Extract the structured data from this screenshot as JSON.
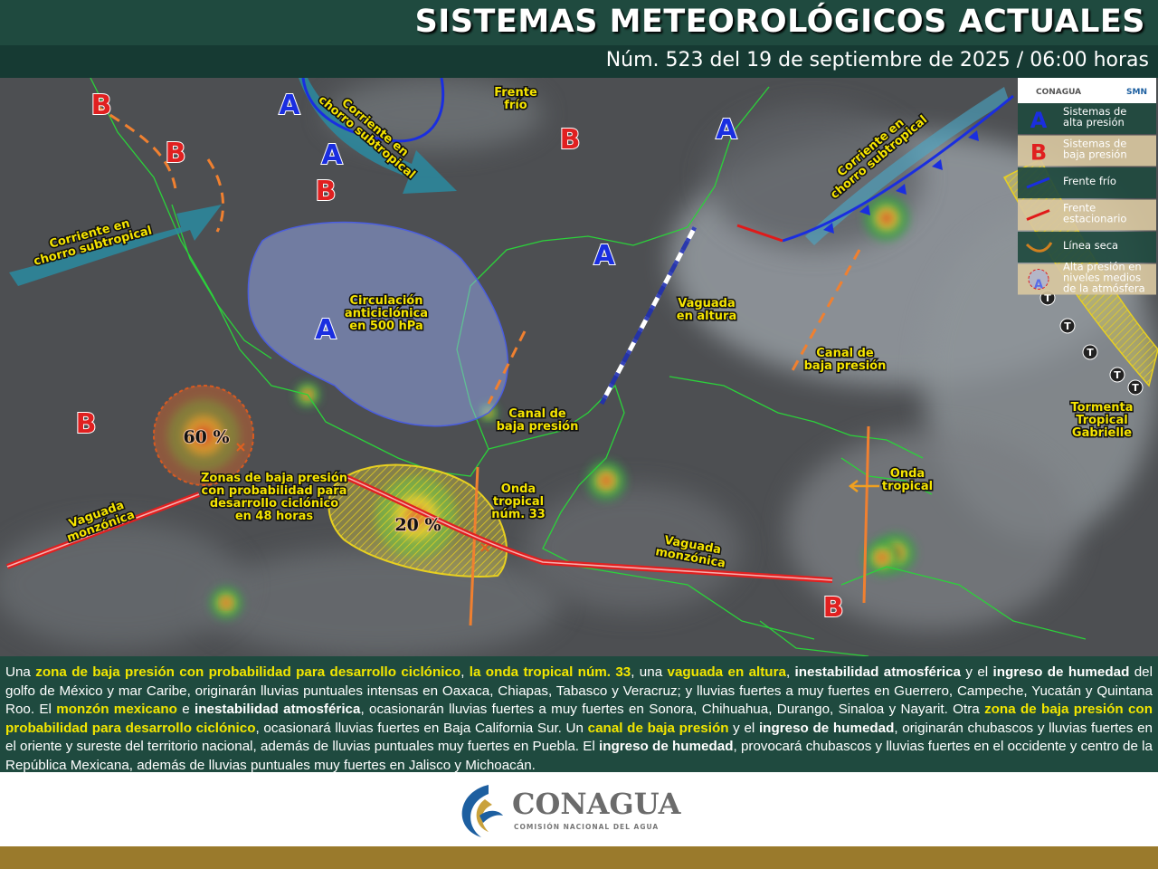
{
  "header": {
    "title": "SISTEMAS METEOROLÓGICOS ACTUALES",
    "subtitle": "Núm. 523 del 19 de septiembre de 2025 / 06:00 horas"
  },
  "map": {
    "labels": [
      "Corriente en\nchorro subtropical",
      "Corriente en\nchorro subtropical",
      "Frente\nfrío",
      "Circulación\nanticiclónica\nen 500 hPa",
      "Corriente en\nchorro subtropical",
      "Vaguada\nen altura",
      "Canal de\nbaja presión",
      "Canal de\nbaja presión",
      "Zonas de baja presión\ncon probabilidad para\ndesarrollo ciclónico\nen 48 horas",
      "Vaguada\nmonzónica",
      "Onda\ntropical\nnúm. 33",
      "Vaguada\nmonzónica",
      "Onda\ntropical",
      "Tormenta\nTropical\nGabrielle"
    ],
    "probabilities": [
      "60 %",
      "20 %"
    ],
    "markers": [
      "A",
      "A",
      "A",
      "A",
      "A",
      "B",
      "B",
      "B",
      "B",
      "B",
      "B"
    ],
    "storm_track": [
      "T",
      "T",
      "T",
      "T",
      "T"
    ]
  },
  "legend": {
    "logos": [
      "CONAGUA",
      "SMN"
    ],
    "items": [
      {
        "symbol": "A",
        "text": "Sistemas de\nalta presión"
      },
      {
        "symbol": "B",
        "text": "Sistemas de\nbaja presión"
      },
      {
        "text": "Frente frío"
      },
      {
        "text": "Frente\nestacionario"
      },
      {
        "text": "Línea seca"
      },
      {
        "symbol": "A",
        "text": "Alta presión en\nniveles medios\nde la atmósfera"
      }
    ]
  },
  "summary": [
    {
      "text": "Una ",
      "style": "plain"
    },
    {
      "text": "zona de baja presión con probabilidad para desarrollo ciclónico",
      "style": "highlight"
    },
    {
      "text": ", ",
      "style": "plain"
    },
    {
      "text": "la onda tropical núm. 33",
      "style": "highlight"
    },
    {
      "text": ", una ",
      "style": "plain"
    },
    {
      "text": "vaguada en altura",
      "style": "highlight"
    },
    {
      "text": ", ",
      "style": "plain"
    },
    {
      "text": "inestabilidad atmosférica",
      "style": "bold"
    },
    {
      "text": " y el ",
      "style": "plain"
    },
    {
      "text": "ingreso de humedad",
      "style": "bold"
    },
    {
      "text": " del golfo de México y mar Caribe, originarán lluvias puntuales intensas en Oaxaca, Chiapas, Tabasco y Veracruz; y lluvias fuertes a muy fuertes en Guerrero, Campeche, Yucatán y Quintana Roo. El ",
      "style": "plain"
    },
    {
      "text": "monzón mexicano",
      "style": "highlight"
    },
    {
      "text": " e ",
      "style": "plain"
    },
    {
      "text": "inestabilidad atmosférica",
      "style": "bold"
    },
    {
      "text": ", ocasionarán lluvias fuertes a muy fuertes en Sonora, Chihuahua, Durango, Sinaloa y Nayarit. Otra ",
      "style": "plain"
    },
    {
      "text": "zona de baja presión con probabilidad para desarrollo ciclónico",
      "style": "highlight"
    },
    {
      "text": ", ocasionará lluvias fuertes en Baja California Sur. Un ",
      "style": "plain"
    },
    {
      "text": "canal de baja presión",
      "style": "highlight"
    },
    {
      "text": " y el ",
      "style": "plain"
    },
    {
      "text": "ingreso de humedad",
      "style": "bold"
    },
    {
      "text": ", originarán chubascos y lluvias fuertes en el oriente y sureste del territorio nacional, además de lluvias puntuales muy fuertes en Puebla. El ",
      "style": "plain"
    },
    {
      "text": "ingreso de humedad",
      "style": "bold"
    },
    {
      "text": ", provocará chubascos y lluvias fuertes en el occidente y centro de la República Mexicana, además de lluvias puntuales muy fuertes en Jalisco y Michoacán.",
      "style": "plain"
    }
  ],
  "footer": {
    "logo": "CONAGUA",
    "tagline": "COMISIÓN NACIONAL DEL AGUA"
  }
}
